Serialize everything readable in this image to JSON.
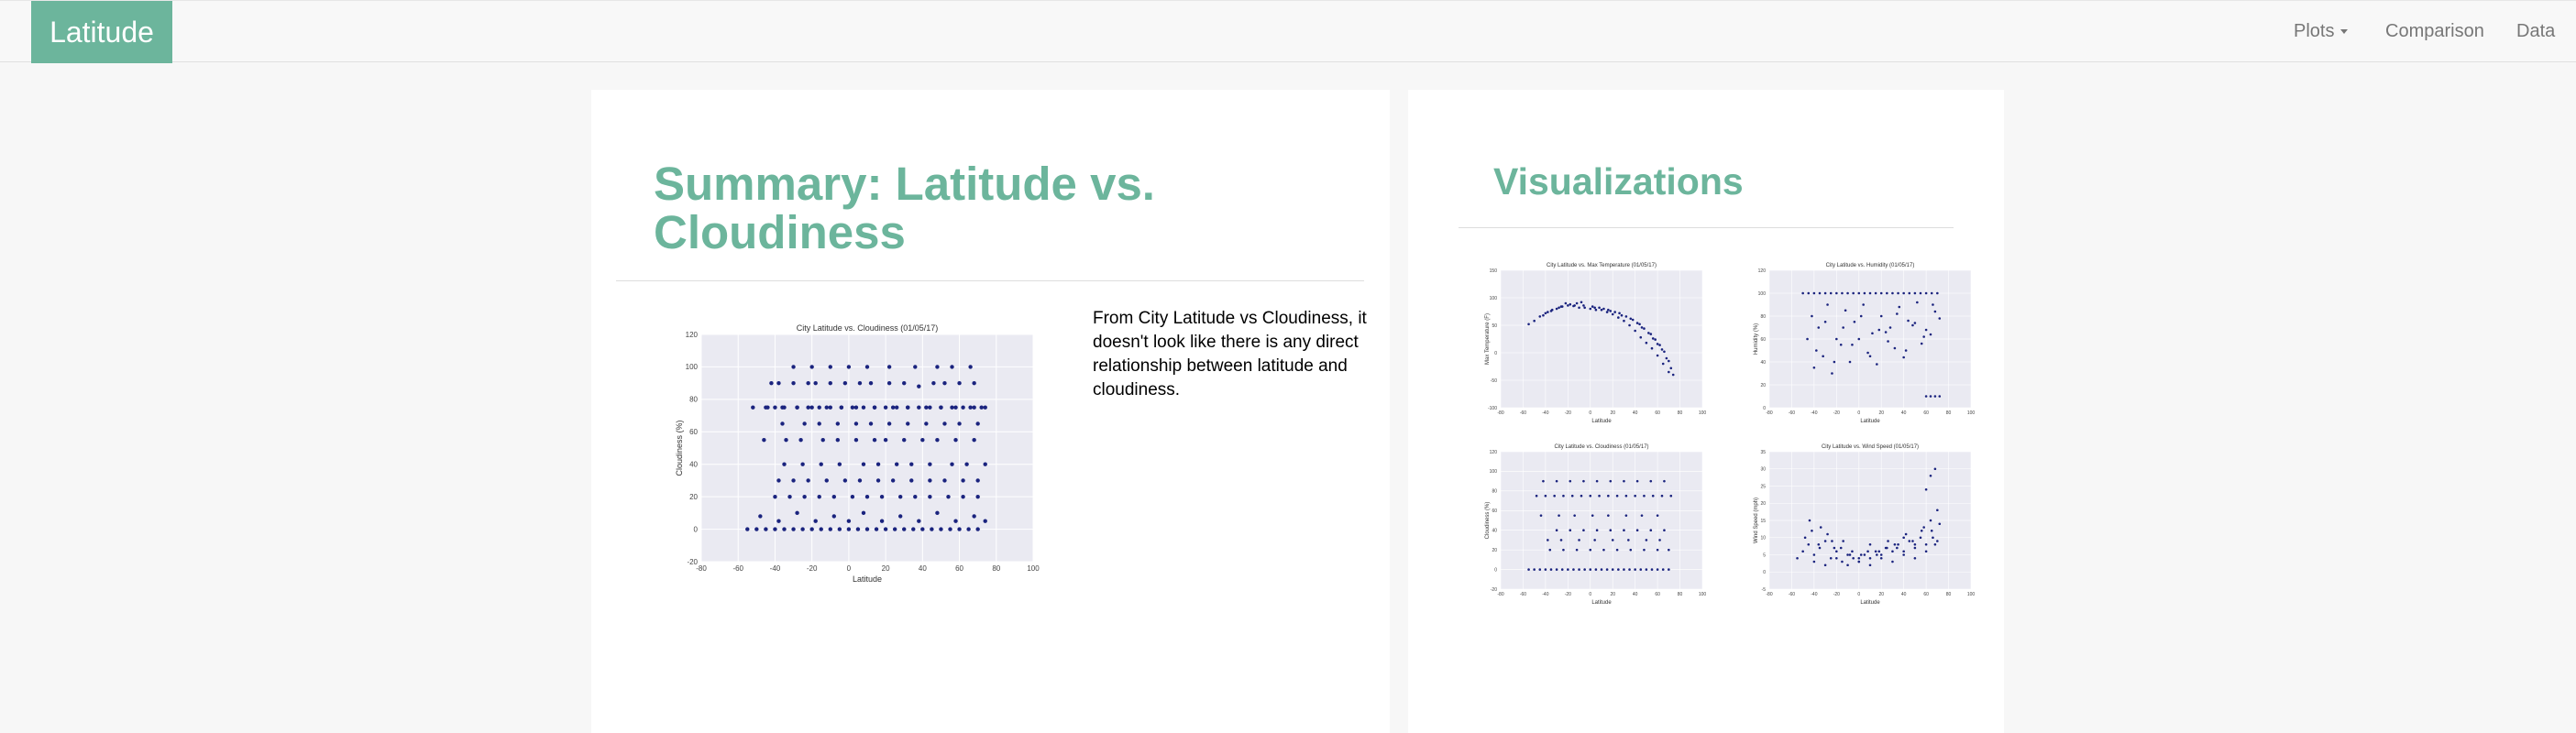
{
  "navbar": {
    "brand": "Latitude",
    "links": {
      "plots": "Plots",
      "comparison": "Comparison",
      "data": "Data"
    }
  },
  "summary": {
    "title": "Summary: Latitude vs. Cloudiness",
    "description": "From City Latitude vs Cloudiness, it doesn't look like there is any direct relationship between latitude and cloudiness."
  },
  "visualizations": {
    "title": "Visualizations"
  },
  "colors": {
    "accent": "#6cb59c",
    "plot_bg": "#eaeaf2",
    "point": "#1a237e"
  },
  "chart_data": [
    {
      "id": "cloudiness_main",
      "type": "scatter",
      "title": "City Latitude vs. Cloudiness (01/05/17)",
      "xlabel": "Latitude",
      "ylabel": "Cloudiness (%)",
      "xlim": [
        -80,
        100
      ],
      "ylim": [
        -20,
        120
      ],
      "xticks": [
        -80,
        -60,
        -40,
        -20,
        0,
        20,
        40,
        60,
        80,
        100
      ],
      "yticks": [
        -20,
        0,
        20,
        40,
        60,
        80,
        100,
        120
      ],
      "grid": true,
      "series": [
        {
          "x": [
            -55,
            -50,
            -45,
            -40,
            -35,
            -30,
            -25,
            -20,
            -15,
            -10,
            -5,
            0,
            5,
            10,
            15,
            20,
            25,
            30,
            35,
            40,
            45,
            50,
            55,
            60,
            65,
            70,
            -42,
            -38,
            -30,
            -22,
            -18,
            -10,
            -2,
            6,
            12,
            22,
            30,
            38,
            46,
            52,
            60,
            68,
            -44,
            -36,
            -28,
            -20,
            -12,
            -4,
            4,
            14,
            24,
            32,
            42,
            50,
            58,
            66,
            72,
            -40,
            -32,
            -24,
            -16,
            -8,
            2,
            10,
            18,
            28,
            36,
            44,
            54,
            62,
            70,
            -35,
            -25,
            -15,
            -5,
            8,
            16,
            26,
            34,
            44,
            56,
            64,
            74,
            -46,
            -34,
            -26,
            -14,
            -6,
            4,
            14,
            20,
            30,
            40,
            48,
            58,
            68,
            -48,
            -38,
            -28,
            -18,
            -8,
            0,
            8,
            18,
            28,
            38,
            48,
            58,
            68,
            74,
            -38,
            -30,
            -22,
            -12,
            -2,
            6,
            16,
            24,
            34,
            44,
            52,
            62,
            70,
            -52,
            -45,
            -40,
            -35,
            -28,
            -22,
            -16,
            -10,
            -4,
            2,
            8,
            14,
            20,
            26,
            32,
            38,
            44,
            50,
            56,
            62,
            68,
            74,
            -36,
            -24,
            -16,
            -6,
            4,
            12,
            22,
            32,
            42,
            52,
            60,
            70,
            -30,
            -20,
            -10,
            0,
            10,
            22,
            36,
            48,
            56,
            66
          ],
          "y": [
            0,
            0,
            0,
            0,
            0,
            0,
            0,
            0,
            0,
            0,
            0,
            0,
            0,
            0,
            0,
            0,
            0,
            0,
            0,
            0,
            0,
            0,
            0,
            0,
            0,
            0,
            90,
            90,
            90,
            90,
            90,
            90,
            90,
            90,
            90,
            90,
            90,
            88,
            90,
            90,
            90,
            90,
            75,
            75,
            75,
            75,
            75,
            75,
            75,
            75,
            75,
            75,
            75,
            75,
            75,
            75,
            75,
            20,
            20,
            20,
            20,
            20,
            20,
            20,
            20,
            20,
            20,
            20,
            20,
            20,
            20,
            40,
            40,
            40,
            40,
            40,
            40,
            40,
            40,
            40,
            40,
            40,
            40,
            55,
            55,
            55,
            55,
            55,
            55,
            55,
            55,
            55,
            55,
            55,
            55,
            55,
            8,
            5,
            10,
            5,
            8,
            5,
            10,
            5,
            8,
            5,
            10,
            5,
            8,
            5,
            30,
            30,
            30,
            30,
            30,
            30,
            30,
            30,
            30,
            30,
            30,
            30,
            30,
            75,
            75,
            75,
            75,
            75,
            75,
            75,
            75,
            75,
            75,
            75,
            75,
            75,
            75,
            75,
            75,
            75,
            75,
            75,
            75,
            75,
            75,
            65,
            65,
            65,
            65,
            65,
            65,
            65,
            65,
            65,
            65,
            65,
            65,
            100,
            100,
            100,
            100,
            100,
            100,
            100,
            100,
            100,
            100
          ]
        }
      ]
    },
    {
      "id": "temperature_thumb",
      "type": "scatter",
      "title": "City Latitude vs. Max Temperature (01/05/17)",
      "xlabel": "Latitude",
      "ylabel": "Max Temperature (F)",
      "xlim": [
        -80,
        100
      ],
      "ylim": [
        -100,
        150
      ],
      "xticks": [
        -80,
        -60,
        -40,
        -20,
        0,
        20,
        40,
        60,
        80,
        100
      ],
      "yticks": [
        -100,
        -50,
        0,
        50,
        100,
        150
      ],
      "series": [
        {
          "x": [
            -55,
            -50,
            -45,
            -40,
            -35,
            -30,
            -25,
            -20,
            -15,
            -10,
            -5,
            0,
            5,
            10,
            15,
            20,
            25,
            30,
            35,
            40,
            45,
            50,
            55,
            60,
            65,
            70,
            -42,
            -34,
            -26,
            -18,
            -12,
            -6,
            4,
            12,
            18,
            26,
            32,
            38,
            44,
            48,
            54,
            58,
            62,
            66,
            68,
            72,
            -38,
            -28,
            -22,
            -14,
            -8,
            2,
            8,
            16,
            22,
            28,
            36,
            42,
            46,
            52,
            56,
            60,
            64,
            70,
            74
          ],
          "y": [
            52,
            58,
            66,
            72,
            76,
            80,
            84,
            86,
            85,
            82,
            82,
            80,
            78,
            78,
            74,
            70,
            64,
            58,
            50,
            40,
            28,
            18,
            8,
            -5,
            -20,
            -35,
            68,
            78,
            84,
            88,
            90,
            86,
            82,
            80,
            76,
            72,
            66,
            60,
            52,
            44,
            34,
            24,
            14,
            2,
            -10,
            -28,
            74,
            82,
            90,
            86,
            92,
            84,
            82,
            78,
            74,
            68,
            62,
            54,
            46,
            36,
            26,
            16,
            6,
            -15,
            -40
          ]
        }
      ]
    },
    {
      "id": "humidity_thumb",
      "type": "scatter",
      "title": "City Latitude vs. Humidity (01/05/17)",
      "xlabel": "Latitude",
      "ylabel": "Humidity (%)",
      "xlim": [
        -80,
        100
      ],
      "ylim": [
        0,
        120
      ],
      "xticks": [
        -80,
        -60,
        -40,
        -20,
        0,
        20,
        40,
        60,
        80,
        100
      ],
      "yticks": [
        0,
        20,
        40,
        60,
        80,
        100,
        120
      ],
      "series": [
        {
          "x": [
            -50,
            -45,
            -40,
            -35,
            -30,
            -25,
            -20,
            -15,
            -10,
            -5,
            0,
            5,
            10,
            15,
            20,
            25,
            30,
            35,
            40,
            45,
            50,
            55,
            60,
            65,
            70,
            -42,
            -36,
            -28,
            -20,
            -12,
            -4,
            4,
            12,
            20,
            28,
            36,
            44,
            52,
            60,
            68,
            -46,
            -38,
            -30,
            -22,
            -14,
            -6,
            2,
            10,
            18,
            26,
            34,
            42,
            50,
            58,
            66,
            72,
            -40,
            -32,
            -24,
            -16,
            -8,
            0,
            8,
            16,
            24,
            32,
            40,
            48,
            56,
            64,
            60,
            64,
            68,
            72
          ],
          "y": [
            100,
            100,
            100,
            100,
            100,
            100,
            100,
            100,
            100,
            100,
            100,
            100,
            100,
            100,
            100,
            100,
            100,
            100,
            100,
            100,
            100,
            100,
            100,
            100,
            100,
            80,
            70,
            90,
            60,
            85,
            75,
            90,
            65,
            80,
            70,
            88,
            76,
            92,
            68,
            84,
            60,
            50,
            75,
            40,
            70,
            55,
            80,
            45,
            68,
            58,
            82,
            50,
            74,
            62,
            90,
            78,
            35,
            45,
            30,
            55,
            40,
            60,
            48,
            38,
            66,
            52,
            44,
            72,
            56,
            64,
            10,
            10,
            10,
            10
          ]
        }
      ]
    },
    {
      "id": "cloudiness_thumb",
      "type": "scatter",
      "title": "City Latitude vs. Cloudiness (01/05/17)",
      "xlabel": "Latitude",
      "ylabel": "Cloudiness (%)",
      "xlim": [
        -80,
        100
      ],
      "ylim": [
        -20,
        120
      ],
      "xticks": [
        -80,
        -60,
        -40,
        -20,
        0,
        20,
        40,
        60,
        80,
        100
      ],
      "yticks": [
        -20,
        0,
        20,
        40,
        60,
        80,
        100,
        120
      ],
      "series": [
        {
          "x": [
            -55,
            -50,
            -45,
            -40,
            -35,
            -30,
            -25,
            -20,
            -15,
            -10,
            -5,
            0,
            5,
            10,
            15,
            20,
            25,
            30,
            35,
            40,
            45,
            50,
            55,
            60,
            65,
            70,
            -42,
            -30,
            -18,
            -6,
            6,
            18,
            30,
            42,
            54,
            66,
            -48,
            -40,
            -32,
            -24,
            -16,
            -8,
            0,
            8,
            16,
            24,
            32,
            40,
            48,
            56,
            64,
            72,
            -36,
            -24,
            -12,
            0,
            12,
            24,
            36,
            48,
            60,
            70,
            -30,
            -18,
            -6,
            6,
            18,
            30,
            42,
            54,
            66,
            -44,
            -28,
            -14,
            2,
            16,
            32,
            46,
            60,
            -38,
            -26,
            -10,
            4,
            20,
            34,
            50,
            62
          ],
          "y": [
            0,
            0,
            0,
            0,
            0,
            0,
            0,
            0,
            0,
            0,
            0,
            0,
            0,
            0,
            0,
            0,
            0,
            0,
            0,
            0,
            0,
            0,
            0,
            0,
            0,
            0,
            90,
            90,
            90,
            90,
            90,
            90,
            90,
            90,
            90,
            90,
            75,
            75,
            75,
            75,
            75,
            75,
            75,
            75,
            75,
            75,
            75,
            75,
            75,
            75,
            75,
            75,
            20,
            20,
            20,
            20,
            20,
            20,
            20,
            20,
            20,
            20,
            40,
            40,
            40,
            40,
            40,
            40,
            40,
            40,
            40,
            55,
            55,
            55,
            55,
            55,
            55,
            55,
            55,
            30,
            30,
            30,
            30,
            30,
            30,
            30,
            30
          ]
        }
      ]
    },
    {
      "id": "wind_thumb",
      "type": "scatter",
      "title": "City Latitude vs. Wind Speed (01/05/17)",
      "xlabel": "Latitude",
      "ylabel": "Wind Speed (mph)",
      "xlim": [
        -80,
        100
      ],
      "ylim": [
        -5,
        35
      ],
      "xticks": [
        -80,
        -60,
        -40,
        -20,
        0,
        20,
        40,
        60,
        80,
        100
      ],
      "yticks": [
        -5,
        0,
        5,
        10,
        15,
        20,
        25,
        30,
        35
      ],
      "series": [
        {
          "x": [
            -55,
            -50,
            -45,
            -40,
            -35,
            -30,
            -25,
            -20,
            -15,
            -10,
            -5,
            0,
            5,
            10,
            15,
            20,
            25,
            30,
            35,
            40,
            45,
            50,
            55,
            60,
            65,
            70,
            -48,
            -42,
            -36,
            -28,
            -22,
            -14,
            -6,
            2,
            10,
            18,
            26,
            34,
            42,
            50,
            58,
            66,
            72,
            -44,
            -34,
            -24,
            -16,
            -8,
            0,
            8,
            16,
            24,
            32,
            40,
            48,
            56,
            64,
            70,
            -40,
            -30,
            -20,
            -10,
            0,
            10,
            20,
            30,
            40,
            50,
            60,
            68,
            60,
            64,
            68
          ],
          "y": [
            4,
            6,
            8,
            5,
            7,
            9,
            4,
            6,
            3,
            5,
            4,
            3,
            5,
            4,
            6,
            5,
            7,
            6,
            8,
            6,
            9,
            7,
            10,
            8,
            12,
            9,
            10,
            12,
            8,
            11,
            7,
            9,
            6,
            5,
            8,
            6,
            9,
            7,
            11,
            8,
            13,
            10,
            14,
            15,
            13,
            9,
            7,
            5,
            4,
            6,
            5,
            7,
            8,
            10,
            9,
            12,
            15,
            18,
            3,
            2,
            4,
            2,
            3,
            2,
            4,
            3,
            5,
            4,
            6,
            8,
            24,
            28,
            30
          ]
        }
      ]
    }
  ]
}
